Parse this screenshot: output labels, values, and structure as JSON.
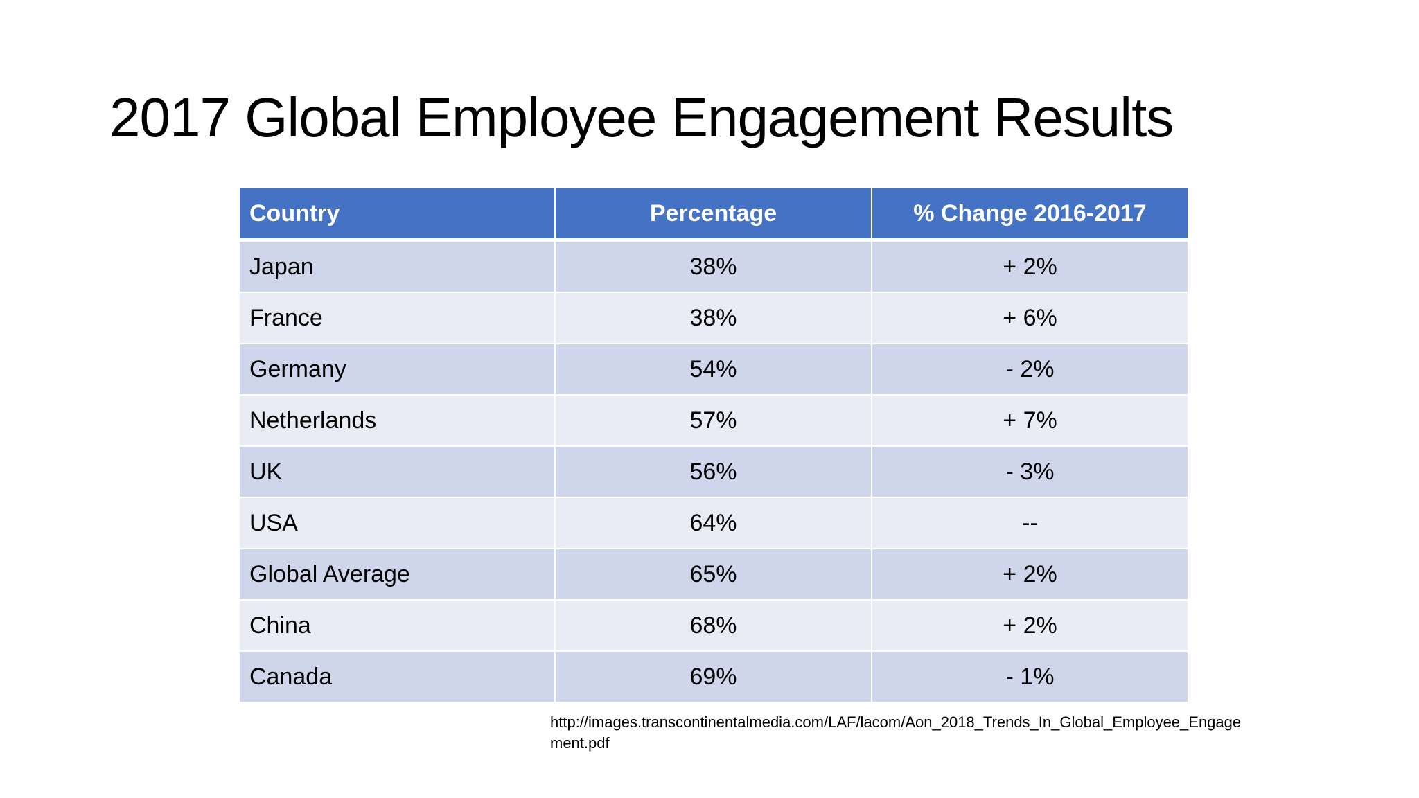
{
  "slide": {
    "title": "2017 Global Employee Engagement Results",
    "source_line1": "http://images.transcontinentalmedia.com/LAF/lacom/Aon_2018_Trends_In_Global_Employee_Engage",
    "source_line2": "ment.pdf"
  },
  "table": {
    "headers": [
      "Country",
      "Percentage",
      "% Change 2016-2017"
    ],
    "rows": [
      {
        "country": "Japan",
        "percentage": "38%",
        "change": "+ 2%"
      },
      {
        "country": "France",
        "percentage": "38%",
        "change": "+ 6%"
      },
      {
        "country": "Germany",
        "percentage": "54%",
        "change": "- 2%"
      },
      {
        "country": "Netherlands",
        "percentage": "57%",
        "change": "+ 7%"
      },
      {
        "country": "UK",
        "percentage": "56%",
        "change": "- 3%"
      },
      {
        "country": "USA",
        "percentage": "64%",
        "change": "--"
      },
      {
        "country": "Global Average",
        "percentage": "65%",
        "change": "+ 2%"
      },
      {
        "country": "China",
        "percentage": "68%",
        "change": "+ 2%"
      },
      {
        "country": "Canada",
        "percentage": "69%",
        "change": "- 1%"
      }
    ]
  },
  "colors": {
    "header_bg": "#4472c4",
    "row_odd_bg": "#cfd5ea",
    "row_even_bg": "#e9ebf5"
  }
}
